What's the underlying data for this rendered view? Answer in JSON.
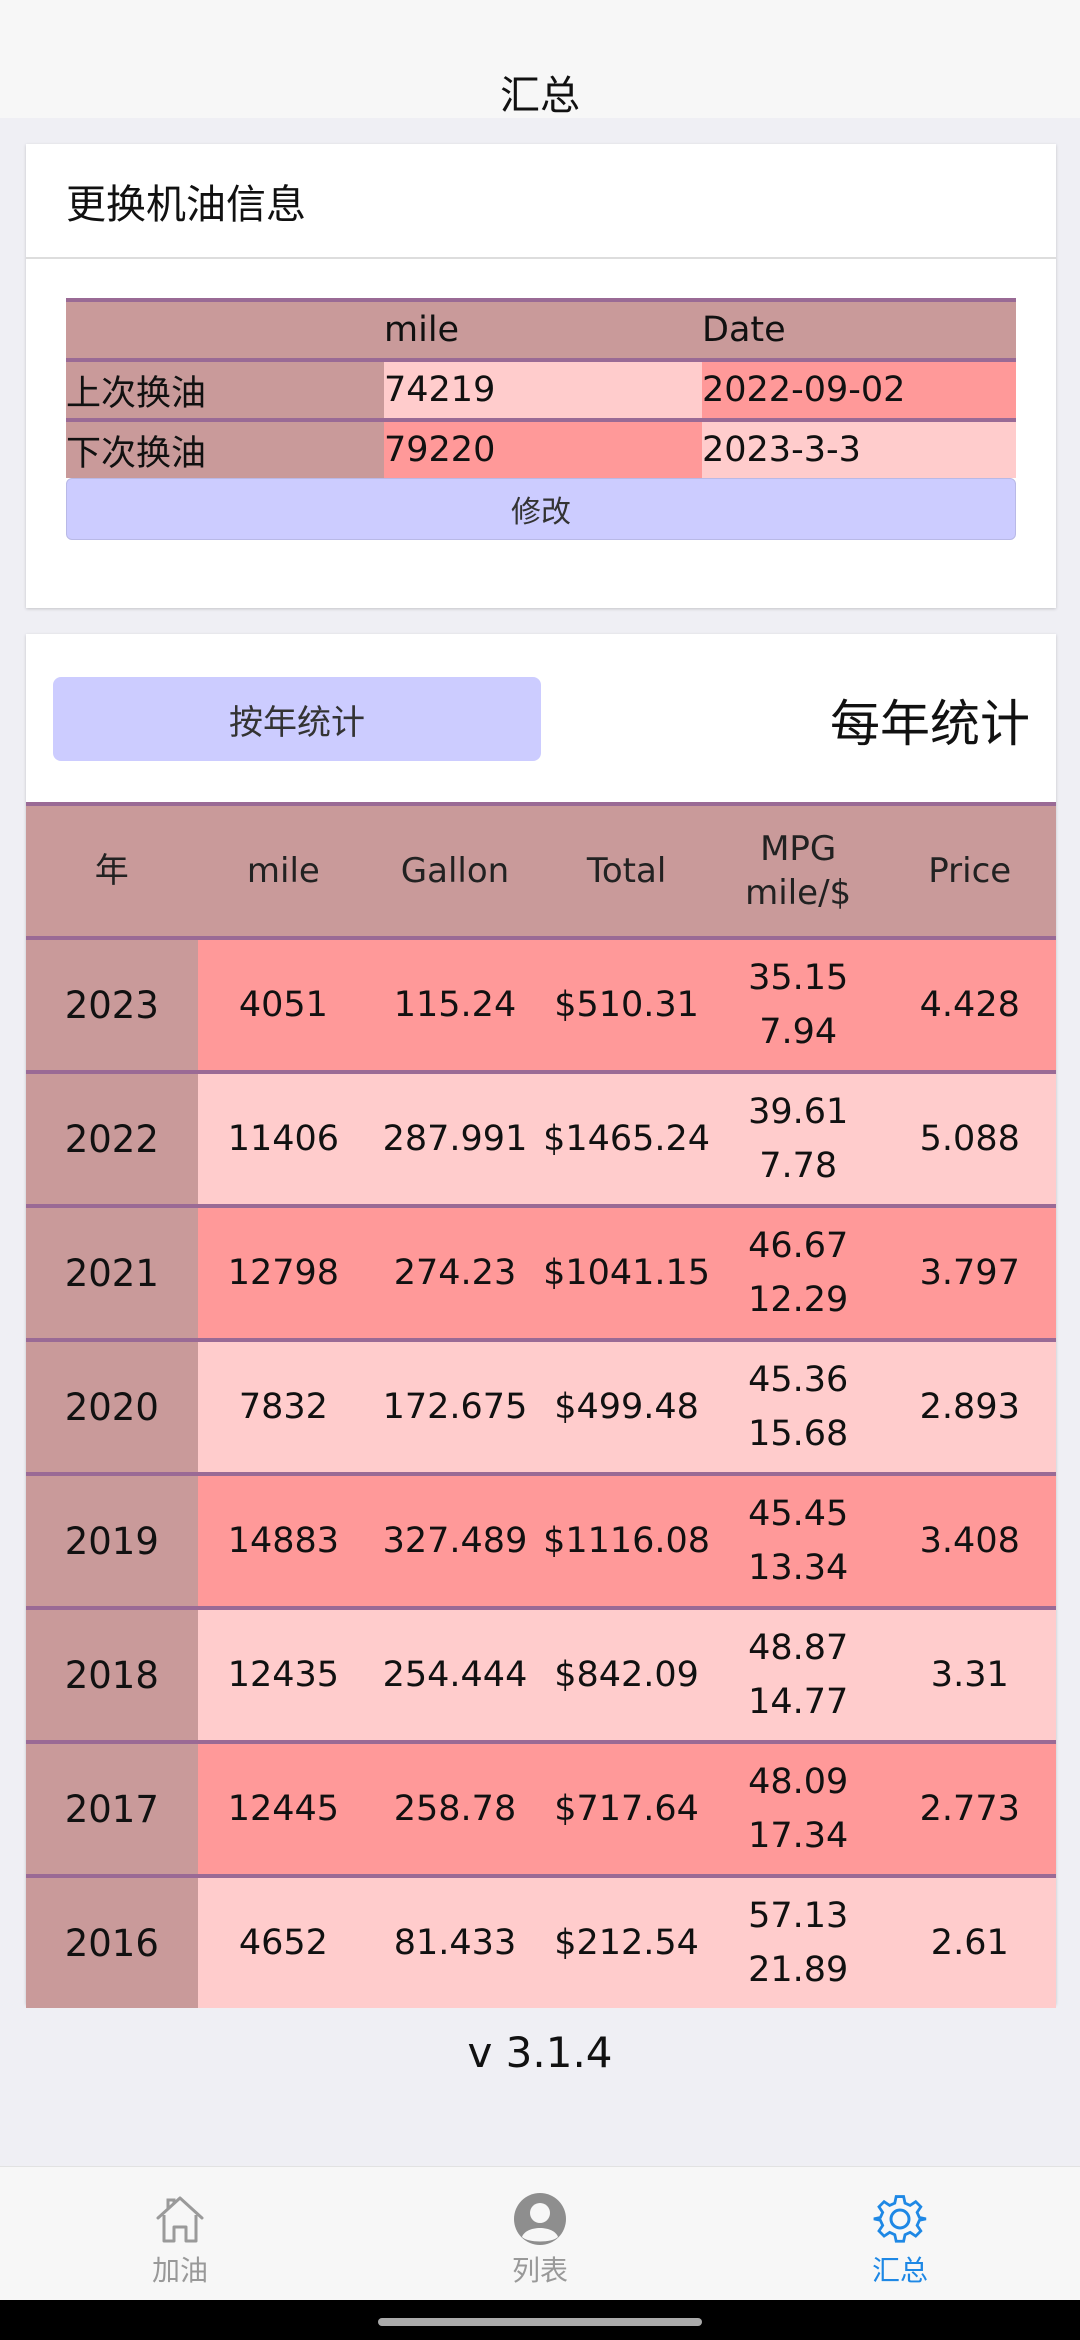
{
  "header": {
    "title": "汇总"
  },
  "oil_card": {
    "title": "更换机油信息",
    "columns": [
      "",
      "mile",
      "Date"
    ],
    "rows": [
      {
        "label": "上次换油",
        "mile": "74219",
        "date": "2022-09-02"
      },
      {
        "label": "下次换油",
        "mile": "79220",
        "date": "2023-3-3"
      }
    ],
    "edit_label": "修改"
  },
  "stats_card": {
    "button_label": "按年统计",
    "title": "每年统计",
    "columns": [
      "年",
      "mile",
      "Gallon",
      "Total",
      "MPG",
      "mile/$",
      "Price"
    ],
    "rows": [
      {
        "year": "2023",
        "mile": "4051",
        "gallon": "115.24",
        "total": "$510.31",
        "mpg": "35.15",
        "mile_per_dollar": "7.94",
        "price": "4.428"
      },
      {
        "year": "2022",
        "mile": "11406",
        "gallon": "287.991",
        "total": "$1465.24",
        "mpg": "39.61",
        "mile_per_dollar": "7.78",
        "price": "5.088"
      },
      {
        "year": "2021",
        "mile": "12798",
        "gallon": "274.23",
        "total": "$1041.15",
        "mpg": "46.67",
        "mile_per_dollar": "12.29",
        "price": "3.797"
      },
      {
        "year": "2020",
        "mile": "7832",
        "gallon": "172.675",
        "total": "$499.48",
        "mpg": "45.36",
        "mile_per_dollar": "15.68",
        "price": "2.893"
      },
      {
        "year": "2019",
        "mile": "14883",
        "gallon": "327.489",
        "total": "$1116.08",
        "mpg": "45.45",
        "mile_per_dollar": "13.34",
        "price": "3.408"
      },
      {
        "year": "2018",
        "mile": "12435",
        "gallon": "254.444",
        "total": "$842.09",
        "mpg": "48.87",
        "mile_per_dollar": "14.77",
        "price": "3.31"
      },
      {
        "year": "2017",
        "mile": "12445",
        "gallon": "258.78",
        "total": "$717.64",
        "mpg": "48.09",
        "mile_per_dollar": "17.34",
        "price": "2.773"
      },
      {
        "year": "2016",
        "mile": "4652",
        "gallon": "81.433",
        "total": "$212.54",
        "mpg": "57.13",
        "mile_per_dollar": "21.89",
        "price": "2.61"
      }
    ]
  },
  "version": "v 3.1.4",
  "tabs": [
    {
      "label": "加油",
      "icon": "home-icon",
      "active": false
    },
    {
      "label": "列表",
      "icon": "user-icon",
      "active": false
    },
    {
      "label": "汇总",
      "icon": "gear-icon",
      "active": true
    }
  ],
  "colors": {
    "label_bg": "#c99a9a",
    "row_light": "#ffcccc",
    "row_dark": "#ff9999",
    "border": "#9a6a95",
    "button_bg": "#ccccff",
    "active_tab": "#1e88e5"
  }
}
